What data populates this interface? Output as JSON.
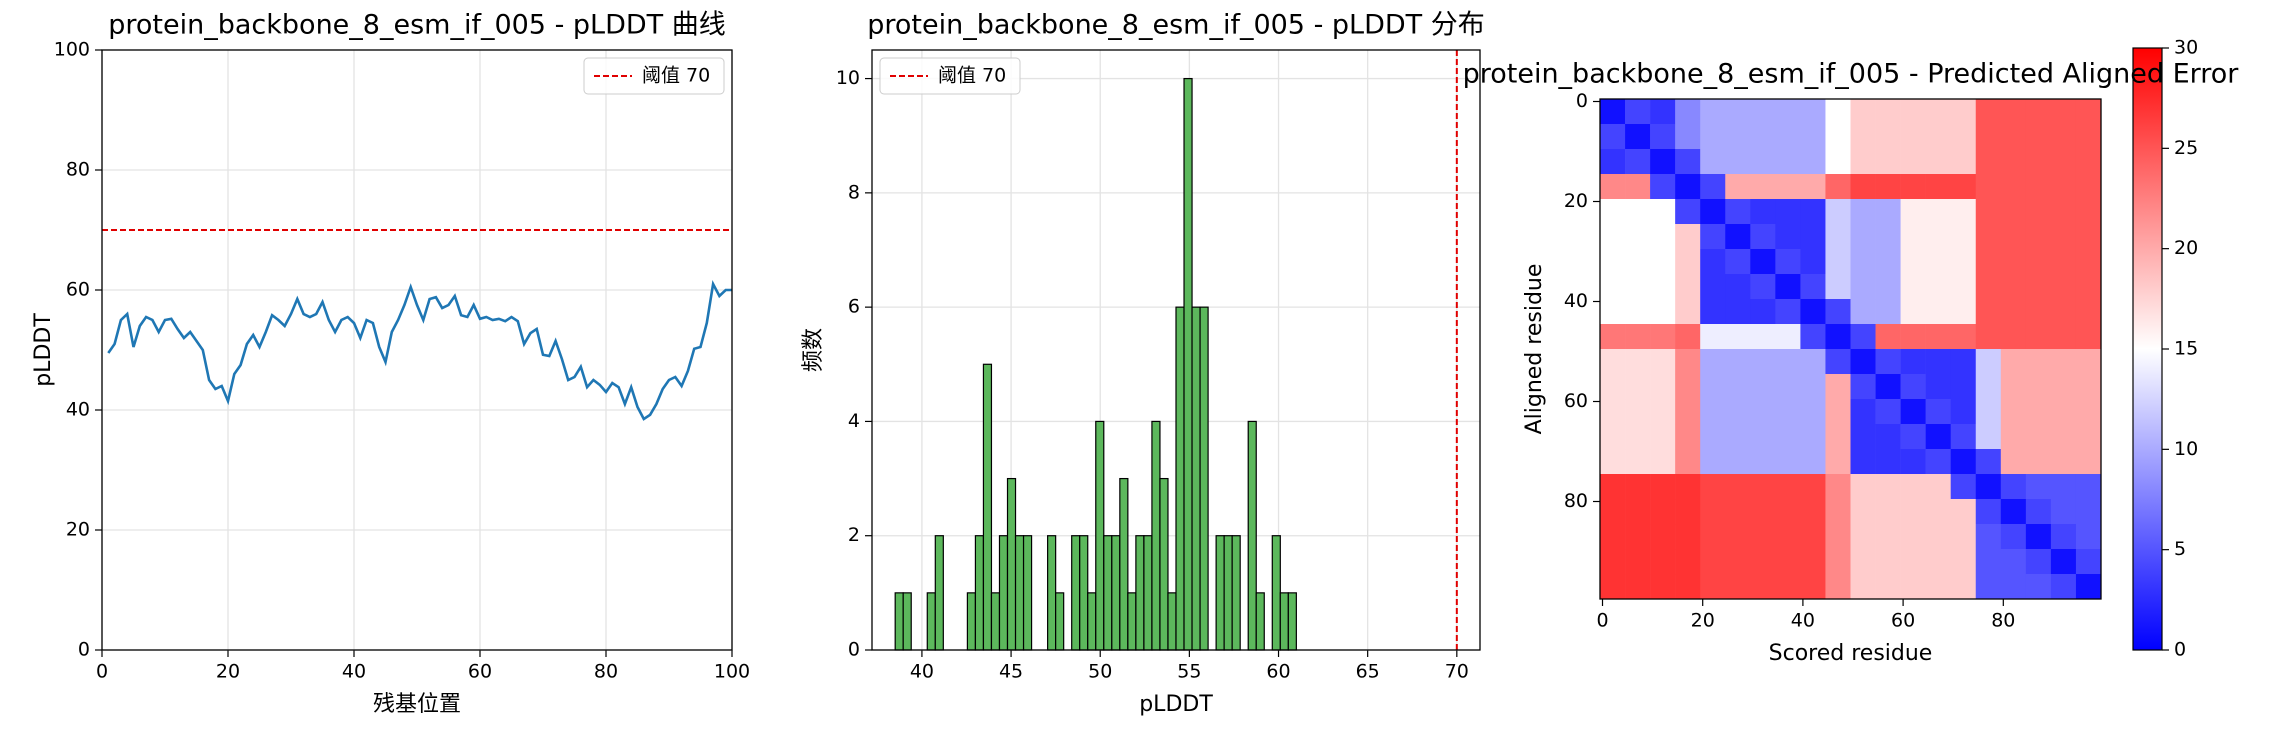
{
  "chart_data": [
    {
      "type": "line",
      "title": "protein_backbone_8_esm_if_005 - pLDDT 曲线",
      "xlabel": "残基位置",
      "ylabel": "pLDDT",
      "x": [
        1,
        2,
        3,
        4,
        5,
        6,
        7,
        8,
        9,
        10,
        11,
        12,
        13,
        14,
        15,
        16,
        17,
        18,
        19,
        20,
        21,
        22,
        23,
        24,
        25,
        26,
        27,
        28,
        29,
        30,
        31,
        32,
        33,
        34,
        35,
        36,
        37,
        38,
        39,
        40,
        41,
        42,
        43,
        44,
        45,
        46,
        47,
        48,
        49,
        50,
        51,
        52,
        53,
        54,
        55,
        56,
        57,
        58,
        59,
        60,
        61,
        62,
        63,
        64,
        65,
        66,
        67,
        68,
        69,
        70,
        71,
        72,
        73,
        74,
        75,
        76,
        77,
        78,
        79,
        80,
        81,
        82,
        83,
        84,
        85,
        86,
        87,
        88,
        89,
        90,
        91,
        92,
        93,
        94,
        95,
        96,
        97,
        98,
        99,
        100
      ],
      "values": [
        49.5,
        51,
        55,
        56,
        50.5,
        54,
        55.5,
        55,
        53,
        55,
        55.2,
        53.5,
        52,
        53,
        51.5,
        50,
        45,
        43.5,
        44,
        41.5,
        46,
        47.5,
        51,
        52.5,
        50.5,
        53,
        55.8,
        55,
        54,
        56,
        58.5,
        56,
        55.5,
        56,
        58,
        55,
        53,
        55,
        55.5,
        54.5,
        52,
        55,
        54.5,
        50.5,
        48,
        53,
        55,
        57.5,
        60.5,
        57.5,
        55,
        58.5,
        58.8,
        57,
        57.5,
        59,
        55.8,
        55.5,
        57.5,
        55.2,
        55.5,
        55,
        55.2,
        54.8,
        55.5,
        54.8,
        51,
        52.8,
        53.5,
        49.2,
        49,
        51.5,
        48.5,
        45,
        45.5,
        47.2,
        43.8,
        45,
        44.2,
        43,
        44.5,
        43.8,
        41,
        43.8,
        40.5,
        38.5,
        39.2,
        41,
        43.5,
        45,
        45.5,
        44,
        46.5,
        50.2,
        50.5,
        54.5,
        61,
        59,
        60,
        60
      ],
      "color": "#1f77b4",
      "xlim": [
        0,
        100
      ],
      "ylim": [
        0,
        100
      ],
      "xticks": [
        0,
        20,
        40,
        60,
        80,
        100
      ],
      "yticks": [
        0,
        20,
        40,
        60,
        80,
        100
      ],
      "grid": true,
      "threshold": {
        "axis": "y",
        "value": 70,
        "label": "阈值 70",
        "color": "#e00000"
      },
      "legend": "upper right"
    },
    {
      "type": "histogram",
      "title": "protein_backbone_8_esm_if_005 - pLDDT 分布",
      "xlabel": "pLDDT",
      "ylabel": "频数",
      "bins": [
        38.5,
        38.95,
        39.4,
        39.85,
        40.3,
        40.75,
        41.2,
        41.65,
        42.1,
        42.55,
        43,
        43.45,
        43.9,
        44.35,
        44.8,
        45.25,
        45.7,
        46.15,
        46.6,
        47.05,
        47.5,
        47.95,
        48.4,
        48.85,
        49.3,
        49.75,
        50.2,
        50.65,
        51.1,
        51.55,
        52,
        52.45,
        52.9,
        53.35,
        53.8,
        54.25,
        54.7,
        55.15,
        55.6,
        56.05,
        56.5,
        56.95,
        57.4,
        57.85,
        58.3,
        58.75,
        59.2,
        59.65,
        60.1,
        60.55,
        61
      ],
      "values": [
        1,
        1,
        0,
        0,
        1,
        2,
        0,
        0,
        0,
        1,
        2,
        5,
        1,
        2,
        3,
        2,
        2,
        0,
        0,
        2,
        1,
        0,
        2,
        2,
        1,
        4,
        2,
        2,
        3,
        1,
        2,
        2,
        4,
        3,
        1,
        6,
        10,
        6,
        6,
        0,
        2,
        2,
        2,
        0,
        4,
        1,
        0,
        2,
        1,
        1
      ],
      "color": "#5cb85c",
      "xlim": [
        37.2,
        71.3
      ],
      "ylim": [
        0,
        10.5
      ],
      "xticks": [
        40,
        45,
        50,
        55,
        60,
        65,
        70
      ],
      "yticks": [
        0,
        2,
        4,
        6,
        8,
        10
      ],
      "grid": true,
      "threshold": {
        "axis": "x",
        "value": 70,
        "label": "阈值 70",
        "color": "#e00000"
      },
      "legend": "upper left"
    },
    {
      "type": "heatmap",
      "title": "protein_backbone_8_esm_if_005 - Predicted Aligned Error",
      "xlabel": "Scored residue",
      "ylabel": "Aligned residue",
      "x": [
        0,
        5,
        10,
        15,
        20,
        25,
        30,
        35,
        40,
        45,
        50,
        55,
        60,
        65,
        70,
        75,
        80,
        85,
        90,
        95
      ],
      "y": [
        0,
        5,
        10,
        15,
        20,
        25,
        30,
        35,
        40,
        45,
        50,
        55,
        60,
        65,
        70,
        75,
        80,
        85,
        90,
        95
      ],
      "z": [
        [
          1,
          4,
          3,
          8,
          10,
          10,
          10,
          10,
          10,
          15,
          18,
          18,
          18,
          18,
          18,
          25,
          25,
          25,
          25,
          25
        ],
        [
          4,
          1,
          4,
          8,
          10,
          10,
          10,
          10,
          10,
          15,
          18,
          18,
          18,
          18,
          18,
          25,
          25,
          25,
          25,
          25
        ],
        [
          3,
          4,
          1,
          4,
          10,
          10,
          10,
          10,
          10,
          15,
          18,
          18,
          18,
          18,
          18,
          25,
          25,
          25,
          25,
          25
        ],
        [
          22,
          22,
          4,
          1,
          4,
          20,
          20,
          20,
          20,
          24,
          26,
          26,
          26,
          26,
          26,
          25,
          25,
          25,
          25,
          25
        ],
        [
          15,
          15,
          15,
          4,
          1,
          4,
          3,
          3,
          3,
          12,
          10,
          10,
          16,
          16,
          16,
          25,
          25,
          25,
          25,
          25
        ],
        [
          15,
          15,
          15,
          18,
          4,
          1,
          4,
          3,
          3,
          12,
          10,
          10,
          16,
          16,
          16,
          25,
          25,
          25,
          25,
          25
        ],
        [
          15,
          15,
          15,
          18,
          3,
          4,
          1,
          4,
          3,
          12,
          10,
          10,
          16,
          16,
          16,
          25,
          25,
          25,
          25,
          25
        ],
        [
          15,
          15,
          15,
          18,
          3,
          3,
          4,
          1,
          4,
          12,
          10,
          10,
          16,
          16,
          16,
          25,
          25,
          25,
          25,
          25
        ],
        [
          15,
          15,
          15,
          18,
          3,
          3,
          3,
          4,
          1,
          4,
          10,
          10,
          16,
          16,
          16,
          25,
          25,
          25,
          25,
          25
        ],
        [
          23,
          23,
          23,
          24,
          14,
          14,
          14,
          14,
          4,
          1,
          4,
          24,
          24,
          24,
          24,
          25,
          25,
          25,
          25,
          25
        ],
        [
          17,
          17,
          17,
          22,
          10,
          10,
          10,
          10,
          10,
          4,
          1,
          4,
          3,
          3,
          3,
          12,
          20,
          20,
          20,
          20
        ],
        [
          17,
          17,
          17,
          22,
          10,
          10,
          10,
          10,
          10,
          20,
          4,
          1,
          4,
          3,
          3,
          12,
          20,
          20,
          20,
          20
        ],
        [
          17,
          17,
          17,
          22,
          10,
          10,
          10,
          10,
          10,
          20,
          3,
          4,
          1,
          4,
          3,
          12,
          20,
          20,
          20,
          20
        ],
        [
          17,
          17,
          17,
          22,
          10,
          10,
          10,
          10,
          10,
          20,
          3,
          3,
          4,
          1,
          4,
          12,
          20,
          20,
          20,
          20
        ],
        [
          17,
          17,
          17,
          22,
          10,
          10,
          10,
          10,
          10,
          20,
          3,
          3,
          3,
          4,
          1,
          4,
          20,
          20,
          20,
          20
        ],
        [
          27,
          27,
          27,
          27,
          26,
          26,
          26,
          26,
          26,
          22,
          18,
          18,
          18,
          18,
          4,
          1,
          4,
          5,
          5,
          5
        ],
        [
          27,
          27,
          27,
          27,
          26,
          26,
          26,
          26,
          26,
          22,
          18,
          18,
          18,
          18,
          18,
          4,
          1,
          4,
          5,
          5
        ],
        [
          27,
          27,
          27,
          27,
          26,
          26,
          26,
          26,
          26,
          22,
          18,
          18,
          18,
          18,
          18,
          5,
          4,
          1,
          4,
          5
        ],
        [
          27,
          27,
          27,
          27,
          26,
          26,
          26,
          26,
          26,
          22,
          18,
          18,
          18,
          18,
          18,
          5,
          5,
          4,
          1,
          4
        ],
        [
          27,
          27,
          27,
          27,
          26,
          26,
          26,
          26,
          26,
          22,
          18,
          18,
          18,
          18,
          18,
          5,
          5,
          5,
          4,
          1
        ]
      ],
      "xlim": [
        -0.5,
        99.5
      ],
      "ylim": [
        99.5,
        -0.5
      ],
      "xticks": [
        0,
        20,
        40,
        60,
        80
      ],
      "yticks": [
        0,
        20,
        40,
        60,
        80
      ],
      "grid": false,
      "colorbar": {
        "cmap": "bwr",
        "clim": [
          0,
          30
        ],
        "ticks": [
          0,
          5,
          10,
          15,
          20,
          25,
          30
        ]
      }
    }
  ]
}
